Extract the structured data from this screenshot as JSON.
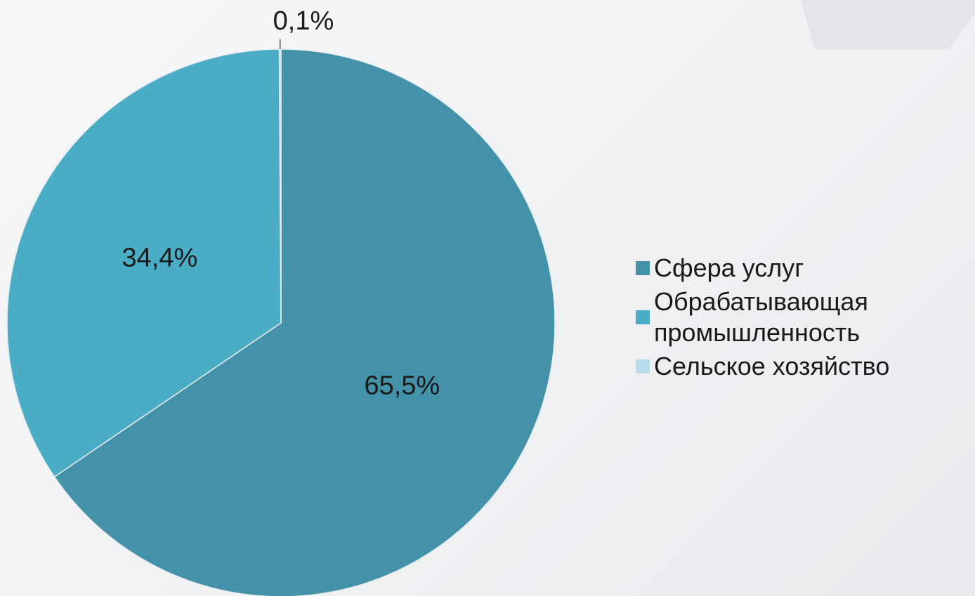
{
  "chart_data": {
    "type": "pie",
    "categories": [
      "Сфера услуг",
      "Обрабатывающая промышленность",
      "Сельское хозяйство"
    ],
    "values": [
      65.5,
      34.4,
      0.1
    ],
    "value_labels": [
      "65,5%",
      "34,4%",
      "0,1%"
    ],
    "colors": [
      "#4392a9",
      "#4bacc6",
      "#b7dde8"
    ],
    "legend": "right"
  }
}
